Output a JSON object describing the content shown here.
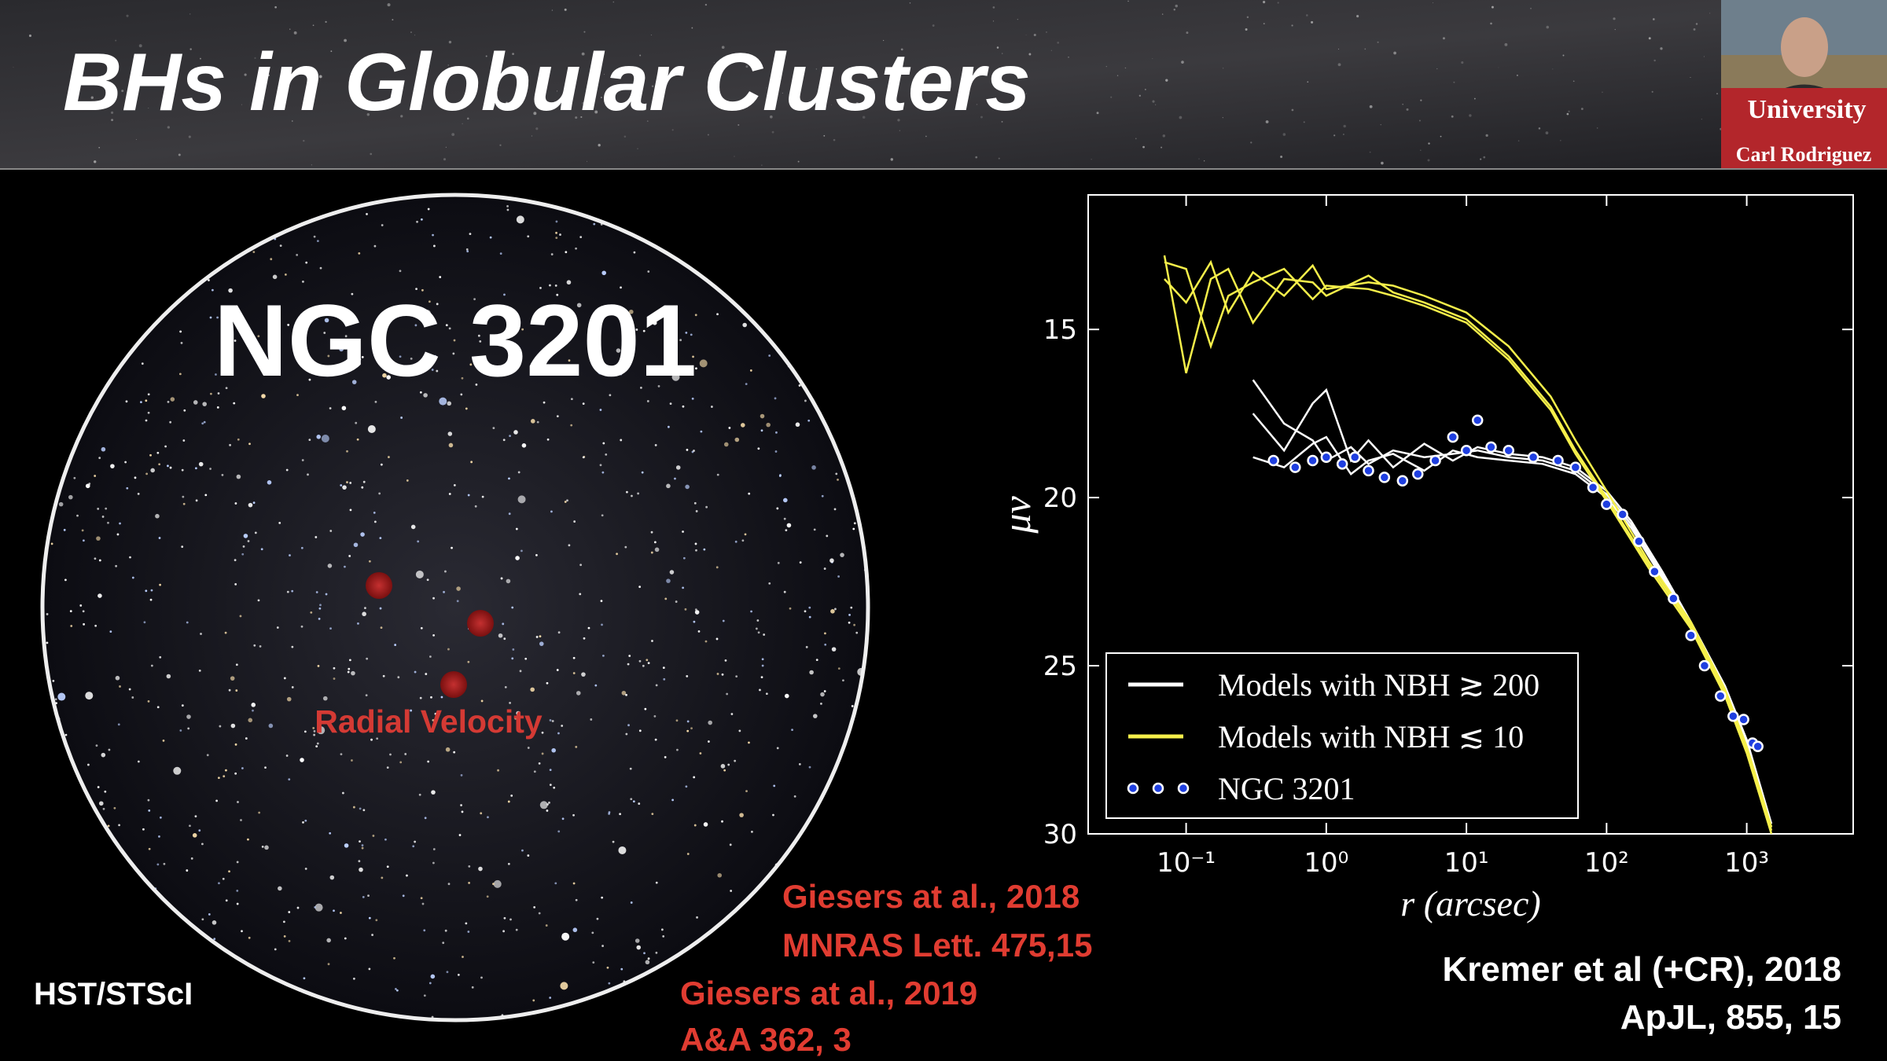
{
  "slide": {
    "title": "BHs in Globular Clusters",
    "image_title": "NGC 3201",
    "image_label": "Radial Velocity",
    "image_credit": "HST/STScI",
    "citations": [
      "Giesers at al., 2018",
      "MNRAS Lett. 475,15",
      "Giesers at al., 2019",
      "A&A 362, 3"
    ],
    "chart_citation": [
      "Kremer et al (+CR), 2018",
      "ApJL, 855, 15"
    ]
  },
  "webcam": {
    "banner": "University",
    "name": "Carl Rodriguez"
  },
  "chart_data": {
    "type": "line",
    "x_label": "r (arcsec)",
    "y_label": "μv",
    "x_scale": "log",
    "y_inverted": true,
    "legend": "lower left",
    "xlim": [
      0.02,
      5750
    ],
    "ylim": [
      11,
      30
    ],
    "xticks": [
      {
        "value": 0.1,
        "label": "10⁻¹"
      },
      {
        "value": 1,
        "label": "10⁰"
      },
      {
        "value": 10,
        "label": "10¹"
      },
      {
        "value": 100,
        "label": "10²"
      },
      {
        "value": 1000,
        "label": "10³"
      }
    ],
    "yticks": [
      15,
      20,
      25,
      30
    ],
    "series": [
      {
        "name": "Models with NBH ≳ 200",
        "color": "#ffffff",
        "style": "line",
        "x": [
          0.3,
          0.5,
          0.8,
          1,
          1.5,
          2,
          3,
          5,
          8,
          12,
          20,
          35,
          60,
          100,
          150,
          250,
          400,
          700,
          1000,
          1500
        ],
        "values": [
          [
            16.5,
            17.8,
            18.3,
            18.9,
            18.5,
            19.0,
            18.6,
            18.8,
            18.7,
            18.6,
            18.8,
            18.9,
            19.2,
            19.9,
            20.8,
            22.3,
            23.8,
            25.7,
            27.3,
            29.8
          ],
          [
            17.5,
            18.6,
            17.2,
            16.8,
            18.9,
            18.3,
            19.1,
            18.4,
            18.9,
            18.5,
            18.7,
            18.8,
            19.1,
            19.8,
            20.7,
            22.2,
            23.7,
            25.6,
            27.2,
            29.7
          ],
          [
            18.8,
            19.1,
            18.4,
            18.2,
            19.3,
            18.9,
            18.7,
            19.2,
            18.6,
            18.8,
            18.9,
            19.0,
            19.3,
            20.0,
            20.9,
            22.4,
            23.9,
            25.8,
            27.4,
            30.0
          ]
        ]
      },
      {
        "name": "Models with NBH ≲ 10",
        "color": "#f5ef4a",
        "style": "line",
        "x": [
          0.07,
          0.1,
          0.15,
          0.2,
          0.3,
          0.5,
          0.8,
          1,
          2,
          3,
          5,
          10,
          20,
          40,
          60,
          100,
          200,
          400,
          700,
          1000,
          1500
        ],
        "values": [
          [
            13.5,
            14.2,
            13.0,
            14.5,
            13.3,
            14.0,
            13.1,
            13.8,
            13.6,
            13.7,
            14.0,
            14.5,
            15.5,
            17.0,
            18.3,
            19.8,
            21.9,
            23.7,
            25.7,
            27.4,
            29.8
          ],
          [
            12.8,
            16.3,
            13.5,
            13.2,
            14.8,
            13.5,
            13.6,
            14.0,
            13.4,
            13.9,
            14.2,
            14.7,
            15.8,
            17.3,
            18.6,
            20.0,
            22.0,
            23.8,
            25.8,
            27.5,
            29.9
          ],
          [
            13.0,
            13.2,
            15.5,
            14.0,
            13.6,
            13.2,
            14.1,
            13.7,
            13.8,
            14.0,
            14.3,
            14.8,
            15.9,
            17.4,
            18.7,
            20.1,
            22.1,
            23.9,
            25.9,
            27.6,
            30.0
          ]
        ]
      },
      {
        "name": "NGC 3201",
        "color": "#1f3fe0",
        "style": "scatter",
        "x": [
          0.42,
          0.6,
          0.8,
          1.0,
          1.3,
          1.6,
          2,
          2.6,
          3.5,
          4.5,
          6,
          8,
          10,
          12,
          15,
          20,
          30,
          45,
          60,
          80,
          100,
          130,
          170,
          220,
          300,
          400,
          500,
          650,
          800,
          950,
          1100,
          1200
        ],
        "values": [
          18.9,
          19.1,
          18.9,
          18.8,
          19.0,
          18.8,
          19.2,
          19.4,
          19.5,
          19.3,
          18.9,
          18.2,
          18.6,
          17.7,
          18.5,
          18.6,
          18.8,
          18.9,
          19.1,
          19.7,
          20.2,
          20.5,
          21.3,
          22.2,
          23.0,
          24.1,
          25.0,
          25.9,
          26.5,
          26.6,
          27.3,
          27.4
        ]
      }
    ]
  }
}
